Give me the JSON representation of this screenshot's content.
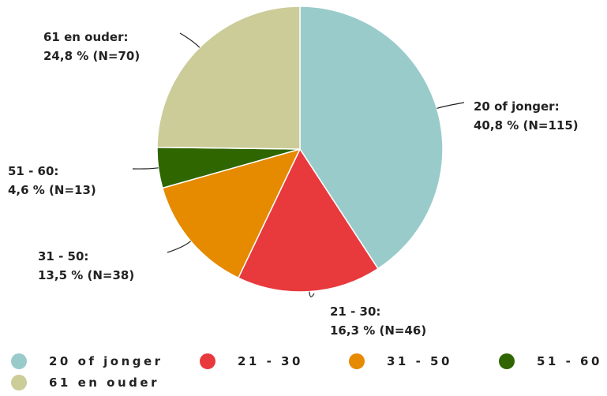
{
  "chart_data": {
    "type": "pie",
    "categories": [
      "20 of jonger",
      "21 - 30",
      "31 - 50",
      "51 - 60",
      "61 en ouder"
    ],
    "label_names": [
      "20 of jonger:",
      "21 - 30:",
      "31 - 50:",
      "51 - 60:",
      "61 en ouder:"
    ],
    "values": [
      40.8,
      16.3,
      13.5,
      4.6,
      24.8
    ],
    "value_labels": [
      "40,8 % (N=115)",
      "16,3 % (N=46)",
      "13,5 % (N=38)",
      "4,6 % (N=13)",
      "24,8 % (N=70)"
    ],
    "colors": [
      "#9acbcb",
      "#e8393d",
      "#e68a00",
      "#2f6600",
      "#cccc99"
    ],
    "legend": "bottom"
  }
}
